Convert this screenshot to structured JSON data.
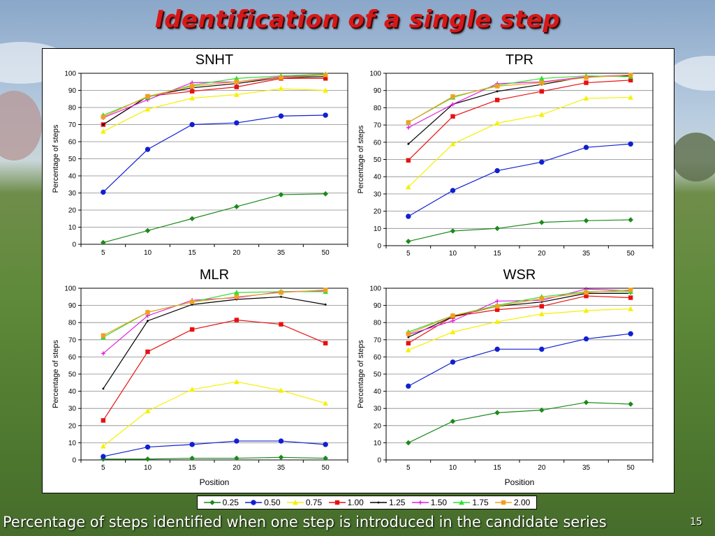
{
  "slide": {
    "title": "Identification of a single step",
    "caption": "Percentage of steps identified when one step is introduced in the candidate series",
    "page_number": "15"
  },
  "colors": {
    "0.25": "#1a8a1a",
    "0.50": "#1020d0",
    "0.75": "#f5f000",
    "1.00": "#e81010",
    "1.25": "#000000",
    "1.50": "#e020e0",
    "1.75": "#30e030",
    "2.00": "#f0a020"
  },
  "markers": {
    "0.25": "diamond",
    "0.50": "circle",
    "0.75": "triangle",
    "1.00": "square",
    "1.25": "plus",
    "1.50": "star",
    "1.75": "triangle",
    "2.00": "square"
  },
  "legend": [
    "0.25",
    "0.50",
    "0.75",
    "1.00",
    "1.25",
    "1.50",
    "1.75",
    "2.00"
  ],
  "chart_data": [
    {
      "type": "line",
      "title": "SNHT",
      "ylabel": "Percentage of steps",
      "xlabel": "",
      "categories": [
        "5",
        "10",
        "15",
        "20",
        "35",
        "50"
      ],
      "ylim": [
        0,
        100
      ],
      "yticks": [
        0,
        10,
        20,
        30,
        40,
        50,
        60,
        70,
        80,
        90,
        100
      ],
      "grid": true,
      "series": [
        {
          "name": "0.25",
          "values": [
            1,
            8,
            15,
            22,
            29,
            29.5
          ]
        },
        {
          "name": "0.50",
          "values": [
            30.5,
            55.5,
            70,
            71,
            75,
            75.5
          ]
        },
        {
          "name": "0.75",
          "values": [
            66,
            79,
            85.5,
            87.5,
            91,
            90
          ]
        },
        {
          "name": "1.00",
          "values": [
            70,
            86.5,
            89.5,
            92,
            97,
            97
          ]
        },
        {
          "name": "1.25",
          "values": [
            70,
            86.5,
            91.5,
            94,
            97.5,
            98
          ]
        },
        {
          "name": "1.50",
          "values": [
            74,
            84.5,
            94.5,
            95,
            98,
            99
          ]
        },
        {
          "name": "1.75",
          "values": [
            75.5,
            86,
            93,
            97,
            98.5,
            99.5
          ]
        },
        {
          "name": "2.00",
          "values": [
            74.5,
            86.5,
            92.5,
            95,
            97.5,
            99
          ]
        }
      ]
    },
    {
      "type": "line",
      "title": "TPR",
      "ylabel": "Percentage of steps",
      "xlabel": "",
      "categories": [
        "5",
        "10",
        "15",
        "20",
        "35",
        "50"
      ],
      "ylim": [
        0,
        100
      ],
      "yticks": [
        0,
        10,
        20,
        30,
        40,
        50,
        60,
        70,
        80,
        90,
        100
      ],
      "grid": true,
      "series": [
        {
          "name": "0.25",
          "values": [
            2.5,
            8.5,
            10,
            13.5,
            14.5,
            15
          ]
        },
        {
          "name": "0.50",
          "values": [
            17,
            32,
            43.5,
            48.5,
            57,
            59
          ]
        },
        {
          "name": "0.75",
          "values": [
            34,
            59,
            71,
            76,
            85.5,
            86
          ]
        },
        {
          "name": "1.00",
          "values": [
            49.5,
            75,
            84.5,
            89.5,
            94.5,
            96
          ]
        },
        {
          "name": "1.25",
          "values": [
            59,
            82,
            89.5,
            93.5,
            98,
            98.5
          ]
        },
        {
          "name": "1.50",
          "values": [
            68.5,
            82,
            94,
            95,
            98,
            99
          ]
        },
        {
          "name": "1.75",
          "values": [
            71.5,
            86,
            93,
            97,
            98.5,
            98
          ]
        },
        {
          "name": "2.00",
          "values": [
            71.5,
            86.5,
            92.5,
            94.5,
            97.5,
            99
          ]
        }
      ]
    },
    {
      "type": "line",
      "title": "MLR",
      "ylabel": "Percentage of steps",
      "xlabel": "Position",
      "categories": [
        "5",
        "10",
        "15",
        "20",
        "35",
        "50"
      ],
      "ylim": [
        0,
        100
      ],
      "yticks": [
        0,
        10,
        20,
        30,
        40,
        50,
        60,
        70,
        80,
        90,
        100
      ],
      "grid": true,
      "series": [
        {
          "name": "0.25",
          "values": [
            0.5,
            0.5,
            1,
            1,
            1.5,
            1
          ]
        },
        {
          "name": "0.50",
          "values": [
            2,
            7.5,
            9,
            11,
            11,
            9
          ]
        },
        {
          "name": "0.75",
          "values": [
            8,
            28.5,
            41,
            45.5,
            40.5,
            33
          ]
        },
        {
          "name": "1.00",
          "values": [
            23,
            63,
            76,
            81.5,
            79,
            68
          ]
        },
        {
          "name": "1.25",
          "values": [
            41.5,
            81,
            90.5,
            93.5,
            95,
            90.5
          ]
        },
        {
          "name": "1.50",
          "values": [
            62,
            84,
            93,
            94.5,
            98,
            98.5
          ]
        },
        {
          "name": "1.75",
          "values": [
            71.5,
            86,
            92,
            97.5,
            98,
            98
          ]
        },
        {
          "name": "2.00",
          "values": [
            72.5,
            86,
            92,
            95,
            97.5,
            99
          ]
        }
      ]
    },
    {
      "type": "line",
      "title": "WSR",
      "ylabel": "Percentage of steps",
      "xlabel": "Position",
      "categories": [
        "5",
        "10",
        "15",
        "20",
        "35",
        "50"
      ],
      "ylim": [
        0,
        100
      ],
      "yticks": [
        0,
        10,
        20,
        30,
        40,
        50,
        60,
        70,
        80,
        90,
        100
      ],
      "grid": true,
      "series": [
        {
          "name": "0.25",
          "values": [
            10,
            22.5,
            27.5,
            29,
            33.5,
            32.5
          ]
        },
        {
          "name": "0.50",
          "values": [
            43,
            57,
            64.5,
            64.5,
            70.5,
            73.5
          ]
        },
        {
          "name": "0.75",
          "values": [
            64,
            74.5,
            80.5,
            85,
            87,
            88
          ]
        },
        {
          "name": "1.00",
          "values": [
            68,
            83.5,
            87.5,
            89.5,
            95.5,
            94.5
          ]
        },
        {
          "name": "1.25",
          "values": [
            71.5,
            83.5,
            89.5,
            92,
            97,
            97
          ]
        },
        {
          "name": "1.50",
          "values": [
            73,
            81,
            92.5,
            93,
            99.5,
            98.5
          ]
        },
        {
          "name": "1.75",
          "values": [
            74.5,
            84,
            90,
            95,
            98,
            98
          ]
        },
        {
          "name": "2.00",
          "values": [
            73.5,
            84,
            89.5,
            94,
            97.5,
            99
          ]
        }
      ]
    }
  ]
}
